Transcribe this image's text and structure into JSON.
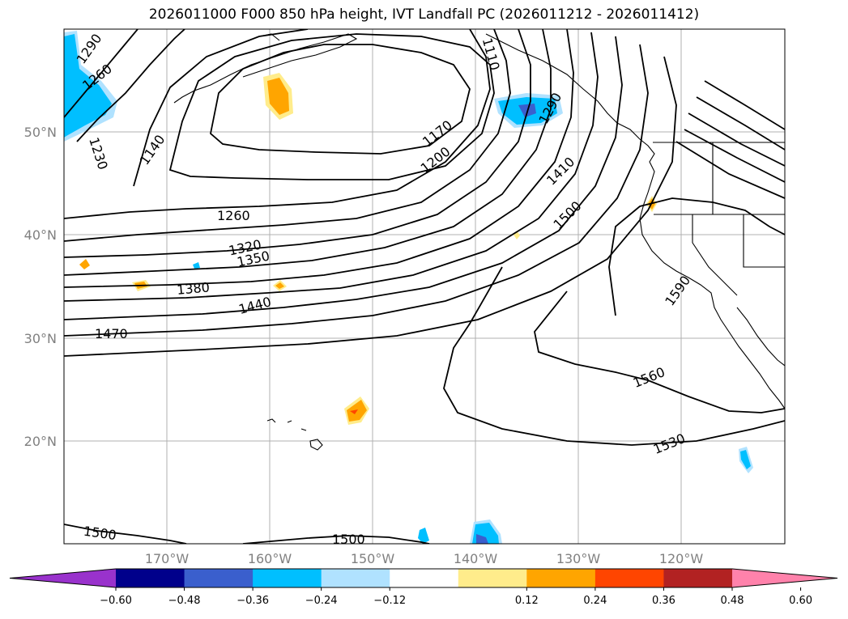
{
  "title": "2026011000 F000 850 hPa height, IVT Landfall PC (2026011212 - 2026011412)",
  "map": {
    "projection": "PlateCarree",
    "lon_range": [
      -180,
      -110
    ],
    "lat_range": [
      10,
      60
    ],
    "lat_ticks": [
      "50°N",
      "40°N",
      "30°N",
      "20°N"
    ],
    "lon_ticks": [
      "170°W",
      "160°W",
      "150°W",
      "140°W",
      "130°W",
      "120°W"
    ],
    "gridlines": true
  },
  "contour_labels": [
    "1290",
    "1260",
    "1230",
    "1140",
    "1110",
    "1170",
    "1200",
    "1290",
    "1410",
    "1500",
    "1260",
    "1320",
    "1350",
    "1380",
    "1440",
    "1470",
    "1590",
    "1560",
    "1530",
    "1500",
    "1500"
  ],
  "colorbar": {
    "extend": "both",
    "ticks": [
      "−0.60",
      "−0.48",
      "−0.36",
      "−0.24",
      "−0.12",
      "0.12",
      "0.24",
      "0.36",
      "0.48",
      "0.60"
    ],
    "colors": [
      "#9932cc",
      "#00008b",
      "#3a5fcd",
      "#00bfff",
      "#b0e2ff",
      "#ffffff",
      "#ffec8b",
      "#ffa500",
      "#ff4500",
      "#b22222",
      "#ff82ab"
    ]
  }
}
